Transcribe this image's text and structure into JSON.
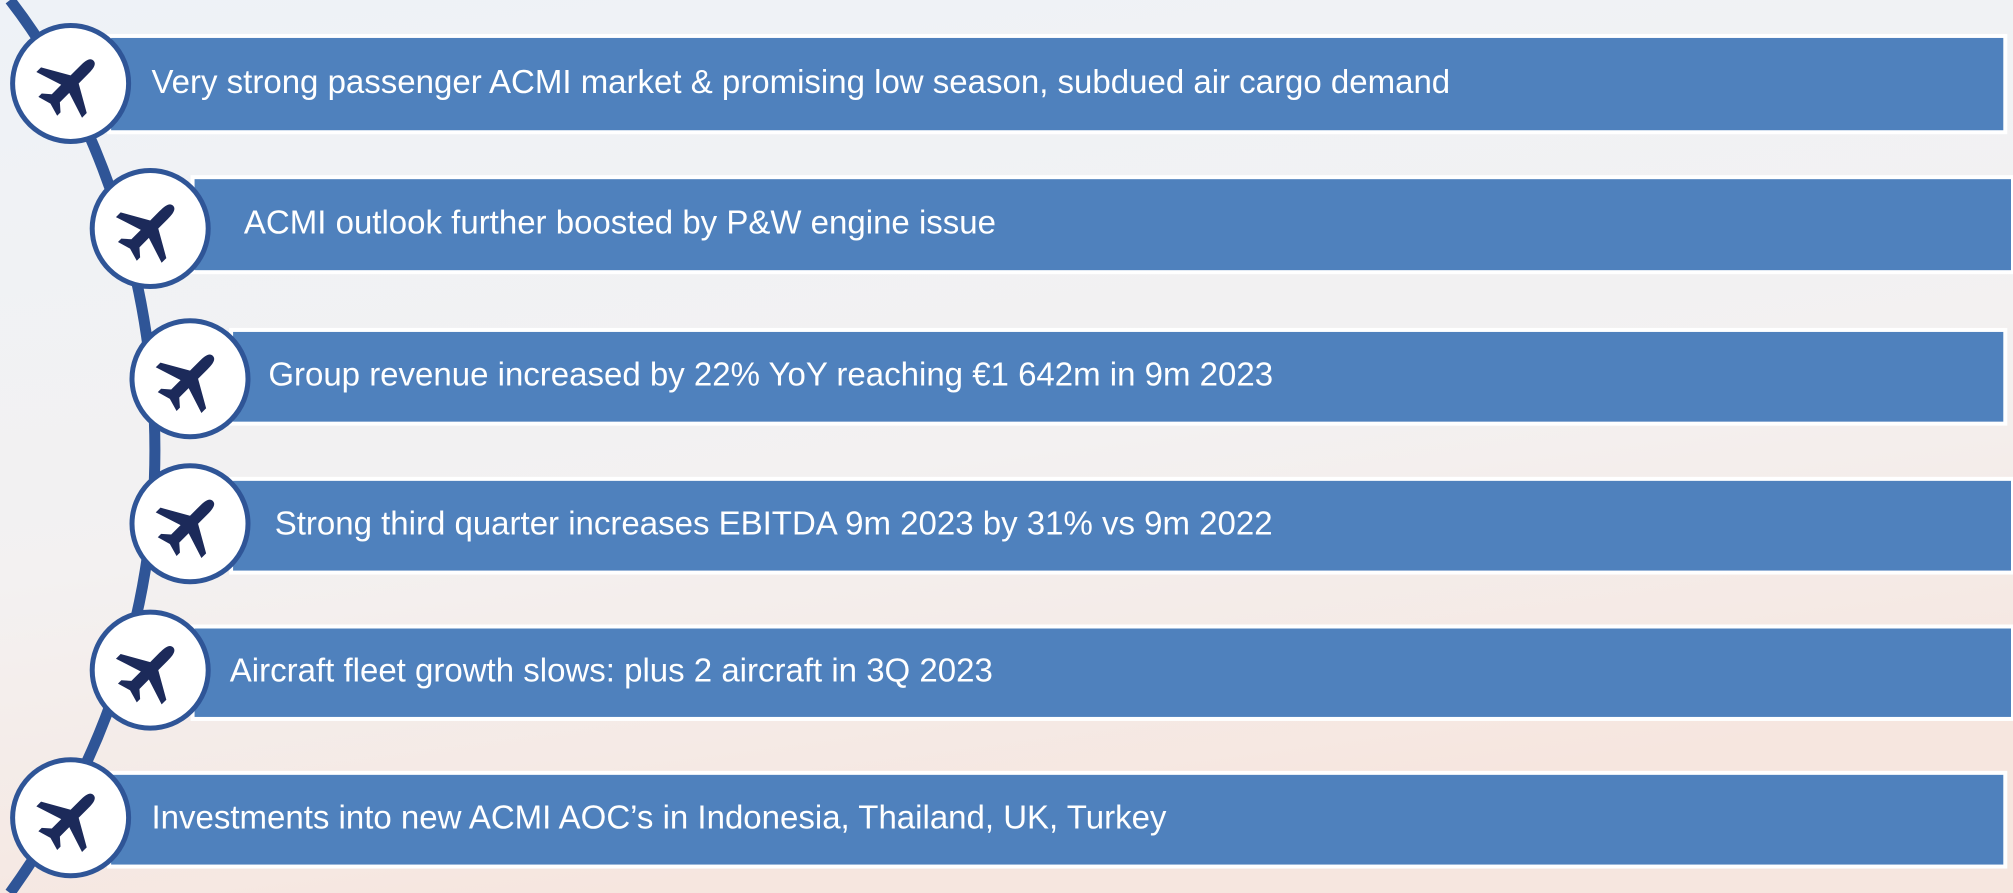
{
  "items": [
    {
      "text": "Very strong passenger ACMI market & promising  low season, subdued  air cargo demand"
    },
    {
      "text": "ACMI outlook further boosted by P&W engine issue"
    },
    {
      "text": "Group revenue increased by 22% YoY reaching €1 642m in 9m 2023"
    },
    {
      "text": "Strong third quarter increases EBITDA 9m 2023 by 31% vs 9m 2022"
    },
    {
      "text": "Aircraft fleet growth slows: plus 2 aircraft in 3Q 2023"
    },
    {
      "text": "Investments into new ACMI AOC’s in Indonesia, Thailand, UK, Turkey"
    }
  ]
}
